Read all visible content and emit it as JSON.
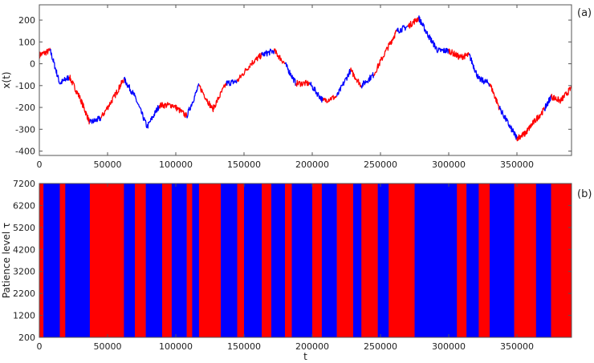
{
  "chart_data": [
    {
      "type": "line",
      "panel_label": "(a)",
      "xlabel": "",
      "ylabel": "x(t)",
      "xlim": [
        0,
        390000
      ],
      "ylim": [
        -420,
        270
      ],
      "x_ticks": [
        "0",
        "50000",
        "100000",
        "150000",
        "200000",
        "250000",
        "300000",
        "350000"
      ],
      "y_ticks": [
        "200",
        "100",
        "0",
        "-100",
        "-200",
        "-300",
        "-400"
      ],
      "colors": {
        "red": "#ff0000",
        "blue": "#0000ff"
      },
      "x": [
        0,
        8000,
        15000,
        22000,
        30000,
        37000,
        45000,
        55000,
        62000,
        70000,
        79000,
        88000,
        98000,
        108000,
        117000,
        127000,
        137000,
        145000,
        155000,
        163000,
        172000,
        180000,
        188000,
        198000,
        208000,
        218000,
        228000,
        236000,
        245000,
        255000,
        262000,
        270000,
        278000,
        285000,
        292000,
        300000,
        308000,
        315000,
        322000,
        330000,
        337000,
        345000,
        350000,
        356000,
        362000,
        370000,
        375000,
        382000,
        390000
      ],
      "y": [
        40,
        60,
        -90,
        -60,
        -160,
        -270,
        -250,
        -150,
        -70,
        -150,
        -290,
        -190,
        -190,
        -240,
        -100,
        -210,
        -90,
        -80,
        0,
        40,
        60,
        0,
        -90,
        -90,
        -170,
        -150,
        -30,
        -100,
        -50,
        70,
        150,
        170,
        210,
        130,
        60,
        60,
        30,
        40,
        -70,
        -90,
        -200,
        -290,
        -340,
        -320,
        -270,
        -210,
        -150,
        -170,
        -110
      ],
      "segment_colors": [
        "red",
        "blue",
        "blue",
        "red",
        "red",
        "blue",
        "red",
        "red",
        "blue",
        "blue",
        "blue",
        "red",
        "red",
        "blue",
        "red",
        "red",
        "blue",
        "red",
        "red",
        "blue",
        "red",
        "blue",
        "red",
        "blue",
        "red",
        "blue",
        "red",
        "blue",
        "red",
        "red",
        "blue",
        "red",
        "blue",
        "blue",
        "blue",
        "red",
        "red",
        "blue",
        "blue",
        "red",
        "blue",
        "blue",
        "red",
        "red",
        "red",
        "blue",
        "red",
        "red"
      ]
    },
    {
      "type": "heatmap",
      "panel_label": "(b)",
      "xlabel": "t",
      "ylabel": "Patience level τ",
      "xlim": [
        0,
        390000
      ],
      "ylim": [
        200,
        7200
      ],
      "x_ticks": [
        "0",
        "50000",
        "100000",
        "150000",
        "200000",
        "250000",
        "300000",
        "350000"
      ],
      "y_ticks": [
        "7200",
        "6200",
        "5200",
        "4200",
        "3200",
        "2200",
        "1200",
        "200"
      ],
      "colors": {
        "red": "#ff0000",
        "blue": "#0000ff"
      },
      "bands": [
        {
          "start": 0,
          "end": 3000,
          "color": "red"
        },
        {
          "start": 3000,
          "end": 15000,
          "color": "blue"
        },
        {
          "start": 15000,
          "end": 19000,
          "color": "red"
        },
        {
          "start": 19000,
          "end": 37000,
          "color": "blue"
        },
        {
          "start": 37000,
          "end": 62000,
          "color": "red"
        },
        {
          "start": 62000,
          "end": 70000,
          "color": "blue"
        },
        {
          "start": 70000,
          "end": 78000,
          "color": "red"
        },
        {
          "start": 78000,
          "end": 90000,
          "color": "blue"
        },
        {
          "start": 90000,
          "end": 97000,
          "color": "red"
        },
        {
          "start": 97000,
          "end": 108000,
          "color": "blue"
        },
        {
          "start": 108000,
          "end": 112000,
          "color": "red"
        },
        {
          "start": 112000,
          "end": 117000,
          "color": "blue"
        },
        {
          "start": 117000,
          "end": 133000,
          "color": "red"
        },
        {
          "start": 133000,
          "end": 145000,
          "color": "blue"
        },
        {
          "start": 145000,
          "end": 150000,
          "color": "red"
        },
        {
          "start": 150000,
          "end": 163000,
          "color": "blue"
        },
        {
          "start": 163000,
          "end": 170000,
          "color": "red"
        },
        {
          "start": 170000,
          "end": 180000,
          "color": "blue"
        },
        {
          "start": 180000,
          "end": 185000,
          "color": "red"
        },
        {
          "start": 185000,
          "end": 200000,
          "color": "blue"
        },
        {
          "start": 200000,
          "end": 207000,
          "color": "red"
        },
        {
          "start": 207000,
          "end": 218000,
          "color": "blue"
        },
        {
          "start": 218000,
          "end": 230000,
          "color": "red"
        },
        {
          "start": 230000,
          "end": 236000,
          "color": "blue"
        },
        {
          "start": 236000,
          "end": 248000,
          "color": "red"
        },
        {
          "start": 248000,
          "end": 256000,
          "color": "blue"
        },
        {
          "start": 256000,
          "end": 275000,
          "color": "red"
        },
        {
          "start": 275000,
          "end": 306000,
          "color": "blue"
        },
        {
          "start": 306000,
          "end": 313000,
          "color": "red"
        },
        {
          "start": 313000,
          "end": 322000,
          "color": "blue"
        },
        {
          "start": 322000,
          "end": 330000,
          "color": "red"
        },
        {
          "start": 330000,
          "end": 348000,
          "color": "blue"
        },
        {
          "start": 348000,
          "end": 364000,
          "color": "red"
        },
        {
          "start": 364000,
          "end": 375000,
          "color": "blue"
        },
        {
          "start": 375000,
          "end": 390000,
          "color": "red"
        }
      ]
    }
  ]
}
